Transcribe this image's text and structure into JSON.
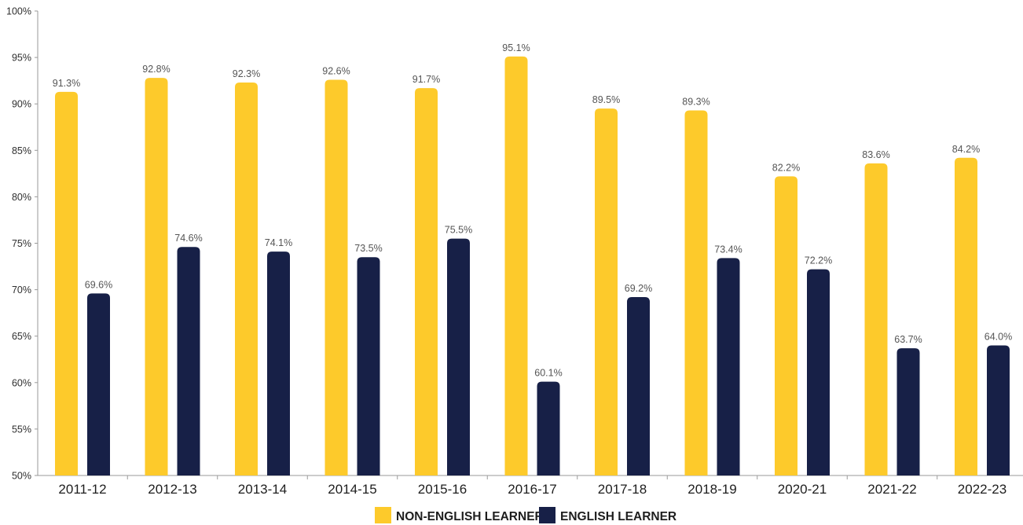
{
  "chart_data": {
    "type": "bar",
    "title": "",
    "xlabel": "",
    "ylabel": "",
    "categories": [
      "2011-12",
      "2012-13",
      "2013-14",
      "2014-15",
      "2015-16",
      "2016-17",
      "2017-18",
      "2018-19",
      "2020-21",
      "2021-22",
      "2022-23"
    ],
    "series": [
      {
        "name": "NON-ENGLISH LEARNER",
        "color": "#fdca2b",
        "values": [
          91.3,
          92.8,
          92.3,
          92.6,
          91.7,
          95.1,
          89.5,
          89.3,
          82.2,
          83.6,
          84.2
        ],
        "labels": [
          "91.3%",
          "92.8%",
          "92.3%",
          "92.6%",
          "91.7%",
          "95.1%",
          "89.5%",
          "89.3%",
          "82.2%",
          "83.6%",
          "84.2%"
        ]
      },
      {
        "name": "ENGLISH LEARNER",
        "color": "#172047",
        "values": [
          69.6,
          74.6,
          74.1,
          73.5,
          75.5,
          60.1,
          69.2,
          73.4,
          72.2,
          63.7,
          64.0
        ],
        "labels": [
          "69.6%",
          "74.6%",
          "74.1%",
          "73.5%",
          "75.5%",
          "60.1%",
          "69.2%",
          "73.4%",
          "72.2%",
          "63.7%",
          "64.0%"
        ]
      }
    ],
    "ylim": [
      50,
      100
    ],
    "yticks": [
      50,
      55,
      60,
      65,
      70,
      75,
      80,
      85,
      90,
      95,
      100
    ],
    "ytick_labels": [
      "50%",
      "55%",
      "60%",
      "65%",
      "70%",
      "75%",
      "80%",
      "85%",
      "90%",
      "95%",
      "100%"
    ],
    "grid": false,
    "legend_position": "bottom-center"
  }
}
